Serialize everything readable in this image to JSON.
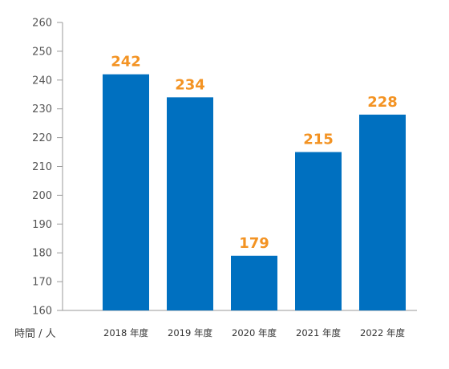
{
  "chart_data": {
    "type": "bar",
    "categories": [
      "2018 年度",
      "2019 年度",
      "2020 年度",
      "2021 年度",
      "2022 年度"
    ],
    "values": [
      242,
      234,
      179,
      215,
      228
    ],
    "data_labels": [
      "242",
      "234",
      "179",
      "215",
      "228"
    ],
    "title": "",
    "xlabel": "",
    "ylabel": "時間 / 人",
    "ylim": [
      160,
      260
    ],
    "yticks": [
      160,
      170,
      180,
      190,
      200,
      210,
      220,
      230,
      240,
      250,
      260
    ],
    "ytick_labels": [
      "160",
      "170",
      "180",
      "190",
      "200",
      "210",
      "220",
      "230",
      "240",
      "250",
      "260"
    ],
    "grid": false,
    "colors": {
      "bar": "#0070C0",
      "value_label": "#F39323",
      "axis": "#999999"
    }
  }
}
